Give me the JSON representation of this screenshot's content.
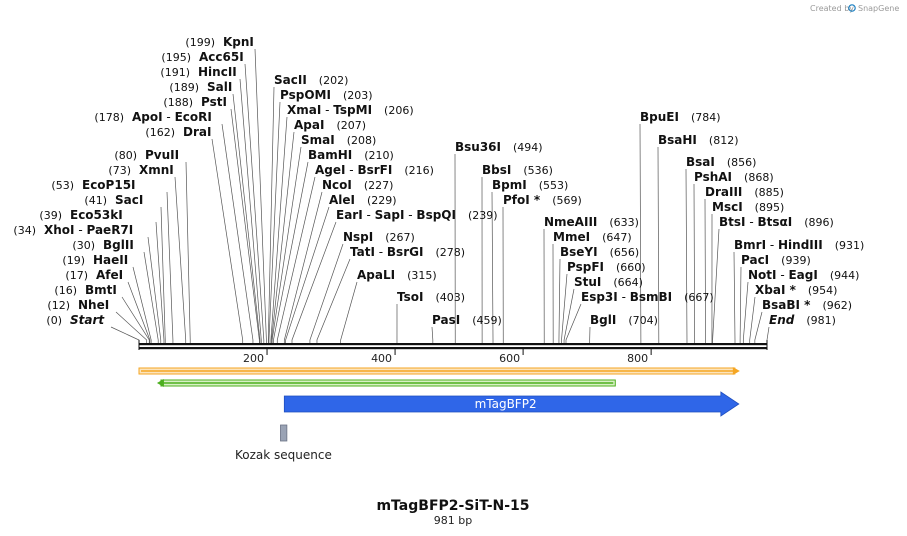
{
  "credit": {
    "text": "Created by",
    "brand": "SnapGene",
    "logo_color": "#1a7fc1"
  },
  "plasmid": {
    "name": "mTagBFP2-SiT-N-15",
    "length_label": "981 bp",
    "length": 981
  },
  "sites": [
    {
      "names": [
        "Start"
      ],
      "pos": 0,
      "num": "(0)",
      "italic": true
    },
    {
      "names": [
        "NheI"
      ],
      "pos": 12,
      "num": "(12)"
    },
    {
      "names": [
        "BmtI"
      ],
      "pos": 16,
      "num": "(16)"
    },
    {
      "names": [
        "AfeI"
      ],
      "pos": 17,
      "num": "(17)"
    },
    {
      "names": [
        "HaeII"
      ],
      "pos": 19,
      "num": "(19)"
    },
    {
      "names": [
        "BglII"
      ],
      "pos": 30,
      "num": "(30)"
    },
    {
      "names": [
        "XhoI",
        "PaeR7I"
      ],
      "pos": 34,
      "num": "(34)"
    },
    {
      "names": [
        "Eco53kI"
      ],
      "pos": 39,
      "num": "(39)"
    },
    {
      "names": [
        "SacI"
      ],
      "pos": 41,
      "num": "(41)"
    },
    {
      "names": [
        "EcoP15I"
      ],
      "pos": 53,
      "num": "(53)"
    },
    {
      "names": [
        "XmnI"
      ],
      "pos": 73,
      "num": "(73)"
    },
    {
      "names": [
        "PvuII"
      ],
      "pos": 80,
      "num": "(80)"
    },
    {
      "names": [
        "DraI"
      ],
      "pos": 162,
      "num": "(162)"
    },
    {
      "names": [
        "ApoI",
        "EcoRI"
      ],
      "pos": 178,
      "num": "(178)"
    },
    {
      "names": [
        "PstI"
      ],
      "pos": 188,
      "num": "(188)"
    },
    {
      "names": [
        "SalI"
      ],
      "pos": 189,
      "num": "(189)"
    },
    {
      "names": [
        "HincII"
      ],
      "pos": 191,
      "num": "(191)"
    },
    {
      "names": [
        "Acc65I"
      ],
      "pos": 195,
      "num": "(195)"
    },
    {
      "names": [
        "KpnI"
      ],
      "pos": 199,
      "num": "(199)"
    },
    {
      "names": [
        "SacII"
      ],
      "pos": 202,
      "num": "(202)"
    },
    {
      "names": [
        "PspOMI"
      ],
      "pos": 203,
      "num": "(203)"
    },
    {
      "names": [
        "XmaI",
        "TspMI"
      ],
      "pos": 206,
      "num": "(206)"
    },
    {
      "names": [
        "ApaI"
      ],
      "pos": 207,
      "num": "(207)"
    },
    {
      "names": [
        "SmaI"
      ],
      "pos": 208,
      "num": "(208)"
    },
    {
      "names": [
        "BamHI"
      ],
      "pos": 210,
      "num": "(210)"
    },
    {
      "names": [
        "AgeI",
        "BsrFI"
      ],
      "pos": 216,
      "num": "(216)"
    },
    {
      "names": [
        "NcoI"
      ],
      "pos": 227,
      "num": "(227)"
    },
    {
      "names": [
        "AleI"
      ],
      "pos": 229,
      "num": "(229)"
    },
    {
      "names": [
        "EarI",
        "SapI",
        "BspQI"
      ],
      "pos": 239,
      "num": "(239)"
    },
    {
      "names": [
        "NspI"
      ],
      "pos": 267,
      "num": "(267)"
    },
    {
      "names": [
        "TatI",
        "BsrGI"
      ],
      "pos": 278,
      "num": "(278)"
    },
    {
      "names": [
        "ApaLI"
      ],
      "pos": 315,
      "num": "(315)"
    },
    {
      "names": [
        "TsoI"
      ],
      "pos": 403,
      "num": "(403)"
    },
    {
      "names": [
        "PasI"
      ],
      "pos": 459,
      "num": "(459)"
    },
    {
      "names": [
        "Bsu36I"
      ],
      "pos": 494,
      "num": "(494)"
    },
    {
      "names": [
        "BbsI"
      ],
      "pos": 536,
      "num": "(536)"
    },
    {
      "names": [
        "BpmI"
      ],
      "pos": 553,
      "num": "(553)"
    },
    {
      "names": [
        "PfoI *"
      ],
      "pos": 569,
      "num": "(569)"
    },
    {
      "names": [
        "NmeAIII"
      ],
      "pos": 633,
      "num": "(633)"
    },
    {
      "names": [
        "MmeI"
      ],
      "pos": 647,
      "num": "(647)"
    },
    {
      "names": [
        "BseYI"
      ],
      "pos": 656,
      "num": "(656)"
    },
    {
      "names": [
        "PspFI"
      ],
      "pos": 660,
      "num": "(660)"
    },
    {
      "names": [
        "StuI"
      ],
      "pos": 664,
      "num": "(664)"
    },
    {
      "names": [
        "Esp3I",
        "BsmBI"
      ],
      "pos": 667,
      "num": "(667)"
    },
    {
      "names": [
        "BglI"
      ],
      "pos": 704,
      "num": "(704)"
    },
    {
      "names": [
        "BpuEI"
      ],
      "pos": 784,
      "num": "(784)"
    },
    {
      "names": [
        "BsaHI"
      ],
      "pos": 812,
      "num": "(812)"
    },
    {
      "names": [
        "BsaI"
      ],
      "pos": 856,
      "num": "(856)"
    },
    {
      "names": [
        "PshAI"
      ],
      "pos": 868,
      "num": "(868)"
    },
    {
      "names": [
        "DraIII"
      ],
      "pos": 885,
      "num": "(885)"
    },
    {
      "names": [
        "MscI"
      ],
      "pos": 895,
      "num": "(895)"
    },
    {
      "names": [
        "BtsI",
        "BtsαI"
      ],
      "pos": 896,
      "num": "(896)"
    },
    {
      "names": [
        "BmrI",
        "HindIII"
      ],
      "pos": 931,
      "num": "(931)"
    },
    {
      "names": [
        "PacI"
      ],
      "pos": 939,
      "num": "(939)"
    },
    {
      "names": [
        "NotI",
        "EagI"
      ],
      "pos": 944,
      "num": "(944)"
    },
    {
      "names": [
        "XbaI *"
      ],
      "pos": 954,
      "num": "(954)"
    },
    {
      "names": [
        "BsaBI *"
      ],
      "pos": 962,
      "num": "(962)"
    },
    {
      "names": [
        "End"
      ],
      "pos": 981,
      "num": "(981)",
      "italic": true
    }
  ],
  "ticks": [
    {
      "value": 200,
      "label": "200"
    },
    {
      "value": 400,
      "label": "400"
    },
    {
      "value": 600,
      "label": "600"
    },
    {
      "value": 800,
      "label": "800"
    }
  ],
  "features": {
    "orf_forward": {
      "start": 0,
      "end": 937,
      "color": "#f5a623",
      "fill": "#fce4bd"
    },
    "orf_reverse": {
      "start": 28,
      "end": 744,
      "color": "#4caf1e",
      "fill": "#d8f0c6"
    },
    "mtagbfp2": {
      "label": "mTagBFP2",
      "start": 227,
      "end": 937,
      "color": "#2f66e8"
    },
    "kozak": {
      "label": "Kozak sequence",
      "start": 221,
      "end": 231,
      "color": "#9aa3b5"
    }
  }
}
